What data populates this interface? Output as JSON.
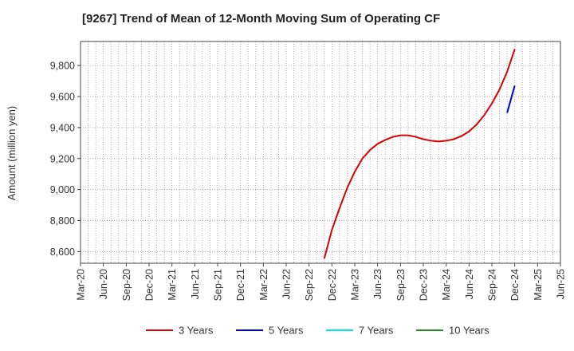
{
  "chart_data": {
    "type": "line",
    "title": "[9267]  Trend of Mean of 12-Month Moving Sum of Operating CF",
    "ylabel": "Amount (million yen)",
    "xlabel": "",
    "x_ticks": [
      "Mar-20",
      "Jun-20",
      "Sep-20",
      "Dec-20",
      "Mar-21",
      "Jun-21",
      "Sep-21",
      "Dec-21",
      "Mar-22",
      "Jun-22",
      "Sep-22",
      "Dec-22",
      "Mar-23",
      "Jun-23",
      "Sep-23",
      "Dec-23",
      "Mar-24",
      "Jun-24",
      "Sep-24",
      "Dec-24",
      "Mar-25",
      "Jun-25"
    ],
    "y_ticks": [
      8600,
      8800,
      9000,
      9200,
      9400,
      9600,
      9800
    ],
    "y_tick_labels": [
      "8,600",
      "8,800",
      "9,000",
      "9,200",
      "9,400",
      "9,600",
      "9,800"
    ],
    "ylim": [
      8525,
      9955
    ],
    "x_range": [
      "Mar-20",
      "Jun-25"
    ],
    "grid": true,
    "legend_position": "bottom",
    "series": [
      {
        "name": "3 Years",
        "color": "#dd0000",
        "points": [
          [
            "Nov-22",
            8555
          ],
          [
            "Dec-22",
            8740
          ],
          [
            "Jan-23",
            8880
          ],
          [
            "Feb-23",
            9010
          ],
          [
            "Mar-23",
            9115
          ],
          [
            "Apr-23",
            9200
          ],
          [
            "May-23",
            9255
          ],
          [
            "Jun-23",
            9295
          ],
          [
            "Jul-23",
            9320
          ],
          [
            "Aug-23",
            9340
          ],
          [
            "Sep-23",
            9350
          ],
          [
            "Oct-23",
            9350
          ],
          [
            "Nov-23",
            9340
          ],
          [
            "Dec-23",
            9325
          ],
          [
            "Jan-24",
            9315
          ],
          [
            "Feb-24",
            9310
          ],
          [
            "Mar-24",
            9315
          ],
          [
            "Apr-24",
            9325
          ],
          [
            "May-24",
            9345
          ],
          [
            "Jun-24",
            9375
          ],
          [
            "Jul-24",
            9420
          ],
          [
            "Aug-24",
            9480
          ],
          [
            "Sep-24",
            9555
          ],
          [
            "Oct-24",
            9645
          ],
          [
            "Nov-24",
            9760
          ],
          [
            "Dec-24",
            9905
          ]
        ]
      },
      {
        "name": "5 Years",
        "color": "#0000cc",
        "points": [
          [
            "Nov-24",
            9495
          ],
          [
            "Dec-24",
            9670
          ]
        ]
      },
      {
        "name": "7 Years",
        "color": "#00e5ee",
        "points": []
      },
      {
        "name": "10 Years",
        "color": "#228b22",
        "points": []
      }
    ]
  }
}
